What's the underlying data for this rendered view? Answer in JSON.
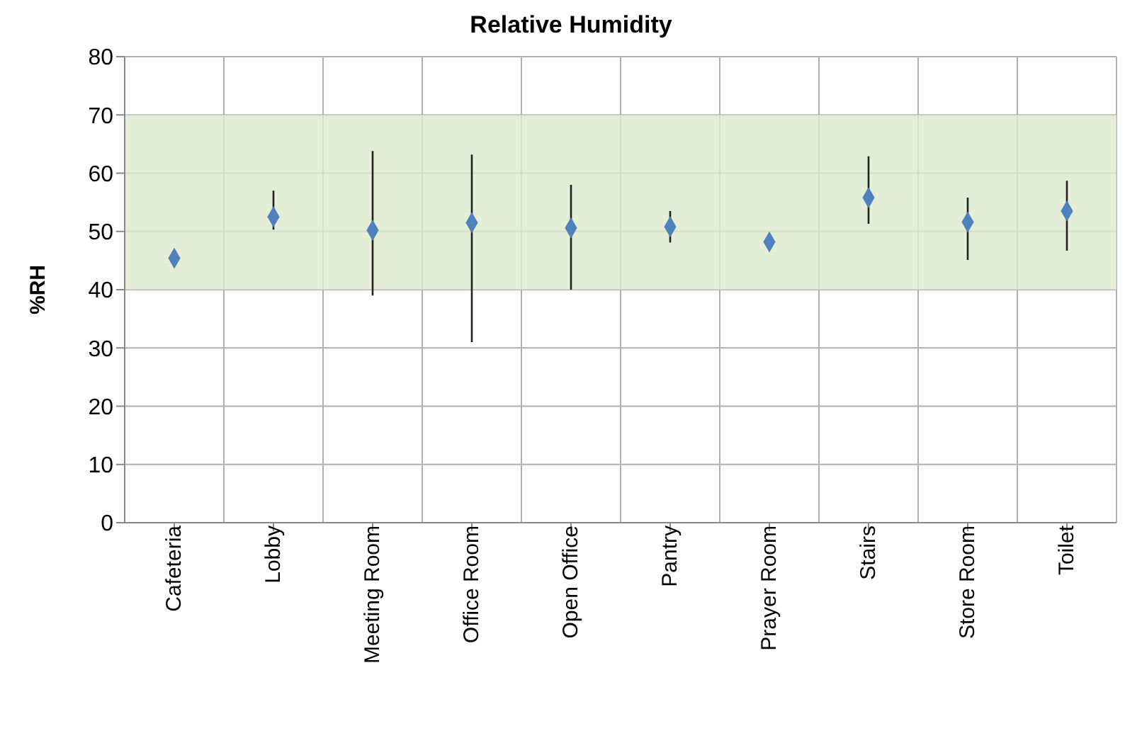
{
  "chart_data": {
    "type": "scatter",
    "title": "Relative Humidity",
    "ylabel": "%RH",
    "categories": [
      "Cafeteria",
      "Lobby",
      "Meeting Room",
      "Office Room",
      "Open Office",
      "Pantry",
      "Prayer Room",
      "Stairs",
      "Store Room",
      "Toilet"
    ],
    "values": [
      45.4,
      52.5,
      50.2,
      51.5,
      50.6,
      50.8,
      48.2,
      55.8,
      51.6,
      53.5
    ],
    "errors": [
      null,
      [
        50.3,
        57.0
      ],
      [
        39.0,
        63.8
      ],
      [
        31.0,
        63.2
      ],
      [
        40.0,
        58.0
      ],
      [
        48.1,
        53.5
      ],
      null,
      [
        51.3,
        62.9
      ],
      [
        45.1,
        55.8
      ],
      [
        46.7,
        58.7
      ]
    ],
    "color": "#4f81bd",
    "marker": "diamond",
    "ylim": [
      0,
      80
    ],
    "yticks": [
      0,
      10,
      20,
      30,
      40,
      50,
      60,
      70,
      80
    ],
    "grid": true,
    "bands": [
      {
        "axis": "y",
        "from": 40,
        "to": 70,
        "color": "#dde8cb"
      }
    ]
  }
}
